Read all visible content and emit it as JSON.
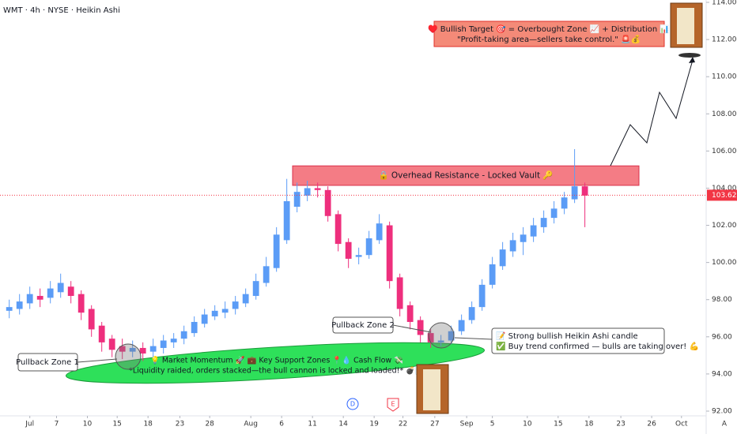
{
  "chart_data": {
    "type": "candlestick",
    "title": "WMT · 4h · NYSE · Heikin Ashi",
    "up_color": "#5b9cf6",
    "down_color": "#ee2f7d",
    "x": [
      -2,
      -1,
      0,
      1,
      2,
      3,
      4,
      5,
      6,
      7,
      8,
      9,
      10,
      11,
      12,
      13,
      14,
      15,
      16,
      17,
      18,
      19,
      20,
      21,
      22,
      23,
      24,
      25,
      26,
      27,
      28,
      29,
      30,
      31,
      32,
      33,
      34,
      35,
      36,
      37,
      38,
      39,
      40,
      41,
      42,
      43,
      44,
      45,
      46,
      47,
      48,
      49,
      50,
      51,
      52,
      53,
      54
    ],
    "open": [
      97.4,
      97.5,
      97.8,
      98.2,
      98.1,
      98.4,
      98.7,
      98.3,
      97.5,
      96.6,
      95.9,
      95.5,
      95.2,
      95.4,
      95.2,
      95.4,
      95.7,
      95.9,
      96.2,
      96.7,
      97.1,
      97.3,
      97.5,
      97.8,
      98.2,
      98.9,
      99.7,
      101.2,
      103.0,
      103.6,
      104.0,
      103.9,
      102.6,
      101.1,
      100.3,
      100.4,
      101.2,
      102.0,
      99.2,
      97.7,
      96.9,
      96.2,
      95.7,
      95.8,
      96.3,
      96.9,
      97.6,
      98.8,
      99.8,
      100.6,
      101.1,
      101.4,
      101.9,
      102.4,
      102.9,
      103.4,
      104.1
    ],
    "high": [
      98.0,
      98.3,
      98.7,
      98.6,
      99.0,
      99.4,
      99.0,
      98.5,
      97.7,
      96.8,
      96.1,
      95.9,
      95.8,
      95.7,
      95.9,
      96.1,
      96.2,
      96.6,
      97.1,
      97.5,
      97.7,
      97.9,
      98.2,
      98.6,
      99.4,
      100.3,
      101.9,
      104.5,
      104.3,
      104.4,
      104.3,
      104.1,
      102.8,
      101.3,
      100.8,
      101.7,
      102.6,
      102.2,
      99.4,
      97.9,
      97.1,
      96.4,
      96.1,
      96.6,
      97.2,
      97.9,
      99.1,
      100.3,
      101.1,
      101.6,
      101.9,
      102.4,
      102.8,
      103.3,
      103.8,
      106.1,
      104.3
    ],
    "low": [
      97.0,
      97.2,
      97.5,
      97.6,
      97.8,
      98.1,
      97.8,
      96.9,
      96.0,
      95.2,
      94.9,
      94.8,
      94.9,
      94.7,
      94.9,
      95.1,
      95.4,
      95.6,
      96.0,
      96.5,
      96.9,
      97.0,
      97.2,
      97.6,
      98.0,
      98.7,
      99.5,
      101.0,
      102.7,
      103.3,
      103.5,
      102.2,
      100.6,
      99.7,
      99.9,
      100.2,
      101.0,
      98.6,
      97.1,
      96.4,
      95.7,
      95.4,
      95.5,
      95.6,
      96.1,
      96.7,
      97.4,
      98.6,
      99.6,
      100.3,
      100.4,
      101.1,
      101.6,
      102.1,
      102.6,
      103.2,
      101.9
    ],
    "close": [
      97.6,
      97.9,
      98.3,
      98.0,
      98.6,
      98.9,
      98.2,
      97.3,
      96.4,
      95.7,
      95.3,
      95.2,
      95.4,
      95.1,
      95.5,
      95.8,
      95.9,
      96.3,
      96.8,
      97.2,
      97.4,
      97.5,
      97.9,
      98.3,
      99.0,
      99.8,
      101.5,
      103.3,
      103.8,
      104.0,
      103.9,
      102.5,
      101.0,
      100.2,
      100.4,
      101.3,
      102.1,
      99.0,
      97.5,
      96.8,
      96.1,
      95.7,
      95.8,
      96.3,
      96.9,
      97.6,
      98.8,
      99.9,
      100.7,
      101.2,
      101.5,
      102.0,
      102.4,
      102.9,
      103.5,
      104.1,
      103.6
    ],
    "xlim": [
      -2.9,
      65.8
    ],
    "xticks": [
      {
        "value": 0,
        "label": "Jul"
      },
      {
        "value": 2.6,
        "label": "7"
      },
      {
        "value": 5.6,
        "label": "10"
      },
      {
        "value": 8.5,
        "label": "15"
      },
      {
        "value": 11.5,
        "label": "18"
      },
      {
        "value": 14.6,
        "label": "23"
      },
      {
        "value": 17.5,
        "label": "28"
      },
      {
        "value": 21.5,
        "label": "Aug"
      },
      {
        "value": 24.5,
        "label": "6"
      },
      {
        "value": 27.5,
        "label": "11"
      },
      {
        "value": 30.5,
        "label": "14"
      },
      {
        "value": 33.5,
        "label": "19"
      },
      {
        "value": 36.3,
        "label": "22"
      },
      {
        "value": 39.4,
        "label": "27"
      },
      {
        "value": 42.5,
        "label": "Sep"
      },
      {
        "value": 45,
        "label": "5"
      },
      {
        "value": 48.4,
        "label": "10"
      },
      {
        "value": 51.4,
        "label": "15"
      },
      {
        "value": 54.4,
        "label": "18"
      },
      {
        "value": 57.5,
        "label": "23"
      },
      {
        "value": 60.5,
        "label": "26"
      },
      {
        "value": 63.4,
        "label": "Oct"
      }
    ],
    "ylim": [
      92,
      114
    ],
    "yticks": [
      {
        "value": 92,
        "label": "92.00"
      },
      {
        "value": 94,
        "label": "94.00"
      },
      {
        "value": 96,
        "label": "96.00"
      },
      {
        "value": 98,
        "label": "98.00"
      },
      {
        "value": 100,
        "label": "100.00"
      },
      {
        "value": 102,
        "label": "102.00"
      },
      {
        "value": 104,
        "label": "104.00"
      },
      {
        "value": 106,
        "label": "106.00"
      },
      {
        "value": 108,
        "label": "108.00"
      },
      {
        "value": 110,
        "label": "110.00"
      },
      {
        "value": 112,
        "label": "112.00"
      },
      {
        "value": 114,
        "label": "114.00"
      }
    ],
    "last_price": 103.62,
    "resistance_zone": {
      "label": "🔒 Overhead Resistance - Locked Vault 🔑",
      "top": 105.2,
      "bottom": 104.15
    },
    "annotations": {
      "target_line1": "♥️ Bullish Target 🎯 = Overbought Zone 📈 + Distribution 📊",
      "target_line2": "\"Profit-taking area—sellers take control.\" 🚨💰",
      "pullback1": "Pullback Zone 1",
      "pullback2": "Pullback Zone 2",
      "callout_line1": "📝 Strong bullish Heikin Ashi candle",
      "callout_line2": "✅ Buy trend confirmed — bulls are taking over! 💪",
      "support_line1": "💡 Market Momentum 🚀 💼 Key Support Zones 📍💧 Cash Flow 💸",
      "support_line2": "*Liquidity raided, orders stacked—the bull cannon is locked and loaded!* 💣📝",
      "icon_d": "D",
      "icon_e": "E",
      "auto_scale": "A"
    }
  }
}
